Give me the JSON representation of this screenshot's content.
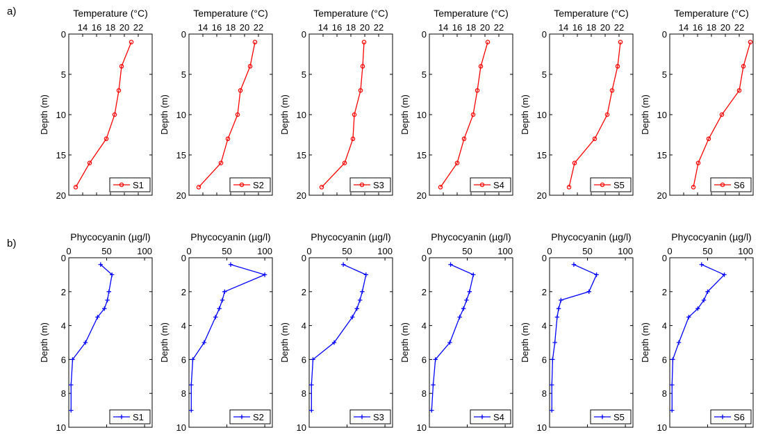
{
  "panel_labels": [
    "a)",
    "b)"
  ],
  "chart_data": [
    {
      "type": "line",
      "panel": "a",
      "title": "",
      "xlabel": "Temperature (°C)",
      "ylabel": "Depth (m)",
      "xlim": [
        12,
        24
      ],
      "ylim": [
        0,
        20
      ],
      "xticks": [
        "14",
        "16",
        "18",
        "20",
        "22"
      ],
      "yticks": [
        "0",
        "5",
        "10",
        "15",
        "20"
      ],
      "grid": false,
      "legend_position": "bottom-right",
      "series": [
        {
          "name": "S1",
          "color": "#ff0000",
          "marker": "circle",
          "x": [
            21.0,
            19.6,
            19.2,
            18.6,
            17.4,
            15.0,
            13.0
          ],
          "y": [
            1,
            4,
            7,
            10,
            13,
            16,
            19
          ]
        }
      ]
    },
    {
      "type": "line",
      "panel": "a",
      "title": "",
      "xlabel": "Temperature (°C)",
      "ylabel": "Depth (m)",
      "xlim": [
        12,
        24
      ],
      "ylim": [
        0,
        20
      ],
      "xticks": [
        "14",
        "16",
        "18",
        "20",
        "22"
      ],
      "yticks": [
        "0",
        "5",
        "10",
        "15",
        "20"
      ],
      "grid": false,
      "legend_position": "bottom-right",
      "series": [
        {
          "name": "S2",
          "color": "#ff0000",
          "marker": "circle",
          "x": [
            21.5,
            20.8,
            19.4,
            19.0,
            17.6,
            16.6,
            13.4
          ],
          "y": [
            1,
            4,
            7,
            10,
            13,
            16,
            19
          ]
        }
      ]
    },
    {
      "type": "line",
      "panel": "a",
      "title": "",
      "xlabel": "Temperature (°C)",
      "ylabel": "Depth (m)",
      "xlim": [
        12,
        24
      ],
      "ylim": [
        0,
        20
      ],
      "xticks": [
        "14",
        "16",
        "18",
        "20",
        "22"
      ],
      "yticks": [
        "0",
        "5",
        "10",
        "15",
        "20"
      ],
      "grid": false,
      "legend_position": "bottom-right",
      "series": [
        {
          "name": "S3",
          "color": "#ff0000",
          "marker": "circle",
          "x": [
            19.9,
            19.7,
            19.4,
            18.5,
            18.3,
            17.1,
            13.8
          ],
          "y": [
            1,
            4,
            7,
            10,
            13,
            16,
            19
          ]
        }
      ]
    },
    {
      "type": "line",
      "panel": "a",
      "title": "",
      "xlabel": "Temperature (°C)",
      "ylabel": "Depth (m)",
      "xlim": [
        12,
        24
      ],
      "ylim": [
        0,
        20
      ],
      "xticks": [
        "14",
        "16",
        "18",
        "20",
        "22"
      ],
      "yticks": [
        "0",
        "5",
        "10",
        "15",
        "20"
      ],
      "grid": false,
      "legend_position": "bottom-right",
      "series": [
        {
          "name": "S4",
          "color": "#ff0000",
          "marker": "circle",
          "x": [
            20.4,
            19.4,
            18.9,
            18.3,
            17.0,
            16.0,
            13.6
          ],
          "y": [
            1,
            4,
            7,
            10,
            13,
            16,
            19
          ]
        }
      ]
    },
    {
      "type": "line",
      "panel": "a",
      "title": "",
      "xlabel": "Temperature (°C)",
      "ylabel": "Depth (m)",
      "xlim": [
        12,
        24
      ],
      "ylim": [
        0,
        20
      ],
      "xticks": [
        "14",
        "16",
        "18",
        "20",
        "22"
      ],
      "yticks": [
        "0",
        "5",
        "10",
        "15",
        "20"
      ],
      "grid": false,
      "legend_position": "bottom-right",
      "series": [
        {
          "name": "S5",
          "color": "#ff0000",
          "marker": "circle",
          "x": [
            22.2,
            21.8,
            21.0,
            20.3,
            18.5,
            15.6,
            14.8
          ],
          "y": [
            1,
            4,
            7,
            10,
            13,
            16,
            19
          ]
        }
      ]
    },
    {
      "type": "line",
      "panel": "a",
      "title": "",
      "xlabel": "Temperature (°C)",
      "ylabel": "Depth (m)",
      "xlim": [
        12,
        24
      ],
      "ylim": [
        0,
        20
      ],
      "xticks": [
        "14",
        "16",
        "18",
        "20",
        "22"
      ],
      "yticks": [
        "0",
        "5",
        "10",
        "15",
        "20"
      ],
      "grid": false,
      "legend_position": "bottom-right",
      "series": [
        {
          "name": "S6",
          "color": "#ff0000",
          "marker": "circle",
          "x": [
            23.6,
            22.6,
            22.0,
            19.5,
            17.6,
            16.1,
            15.4
          ],
          "y": [
            1,
            4,
            7,
            10,
            13,
            16,
            19
          ]
        }
      ]
    },
    {
      "type": "line",
      "panel": "b",
      "title": "",
      "xlabel": "Phycocyanin (µg/l)",
      "ylabel": "Depth (m)",
      "xlim": [
        0,
        110
      ],
      "ylim": [
        0,
        10
      ],
      "xticks": [
        "0",
        "50",
        "100"
      ],
      "yticks": [
        "0",
        "2",
        "4",
        "6",
        "8",
        "10"
      ],
      "grid": false,
      "legend_position": "bottom-right",
      "series": [
        {
          "name": "S1",
          "color": "#0000ff",
          "marker": "plus",
          "x": [
            42,
            57,
            53,
            51,
            47,
            38,
            22,
            5,
            3,
            3
          ],
          "y": [
            0.4,
            1,
            2,
            2.5,
            3,
            3.5,
            5,
            6,
            7.5,
            9
          ]
        }
      ]
    },
    {
      "type": "line",
      "panel": "b",
      "title": "",
      "xlabel": "Phycocyanin (µg/l)",
      "ylabel": "Depth (m)",
      "xlim": [
        0,
        110
      ],
      "ylim": [
        0,
        10
      ],
      "xticks": [
        "0",
        "50",
        "100"
      ],
      "yticks": [
        "0",
        "2",
        "4",
        "6",
        "8",
        "10"
      ],
      "grid": false,
      "legend_position": "bottom-right",
      "series": [
        {
          "name": "S2",
          "color": "#0000ff",
          "marker": "plus",
          "x": [
            55,
            100,
            47,
            44,
            40,
            35,
            20,
            5,
            3,
            3
          ],
          "y": [
            0.4,
            1,
            2,
            2.5,
            3,
            3.5,
            5,
            6,
            7.5,
            9
          ]
        }
      ]
    },
    {
      "type": "line",
      "panel": "b",
      "title": "",
      "xlabel": "Phycocyanin (µg/l)",
      "ylabel": "Depth (m)",
      "xlim": [
        0,
        110
      ],
      "ylim": [
        0,
        10
      ],
      "xticks": [
        "0",
        "50",
        "100"
      ],
      "yticks": [
        "0",
        "2",
        "4",
        "6",
        "8",
        "10"
      ],
      "grid": false,
      "legend_position": "bottom-right",
      "series": [
        {
          "name": "S3",
          "color": "#0000ff",
          "marker": "plus",
          "x": [
            45,
            75,
            70,
            67,
            63,
            57,
            33,
            5,
            3,
            3
          ],
          "y": [
            0.4,
            1,
            2,
            2.5,
            3,
            3.5,
            5,
            6,
            7.5,
            9
          ]
        }
      ]
    },
    {
      "type": "line",
      "panel": "b",
      "title": "",
      "xlabel": "Phycocyanin (µg/l)",
      "ylabel": "Depth (m)",
      "xlim": [
        0,
        110
      ],
      "ylim": [
        0,
        10
      ],
      "xticks": [
        "0",
        "50",
        "100"
      ],
      "yticks": [
        "0",
        "2",
        "4",
        "6",
        "8",
        "10"
      ],
      "grid": false,
      "legend_position": "bottom-right",
      "series": [
        {
          "name": "S4",
          "color": "#0000ff",
          "marker": "plus",
          "x": [
            28,
            58,
            53,
            49,
            45,
            40,
            27,
            8,
            5,
            3
          ],
          "y": [
            0.4,
            1,
            2,
            2.5,
            3,
            3.5,
            5,
            6,
            7.5,
            9
          ]
        }
      ]
    },
    {
      "type": "line",
      "panel": "b",
      "title": "",
      "xlabel": "Phycocyanin (µg/l)",
      "ylabel": "Depth (m)",
      "xlim": [
        0,
        110
      ],
      "ylim": [
        0,
        10
      ],
      "xticks": [
        "0",
        "50",
        "100"
      ],
      "yticks": [
        "0",
        "2",
        "4",
        "6",
        "8",
        "10"
      ],
      "grid": false,
      "legend_position": "bottom-right",
      "series": [
        {
          "name": "S5",
          "color": "#0000ff",
          "marker": "plus",
          "x": [
            32,
            62,
            52,
            15,
            12,
            10,
            7,
            4,
            3,
            3
          ],
          "y": [
            0.4,
            1,
            2,
            2.5,
            3,
            3.5,
            5,
            6,
            7.5,
            9
          ]
        }
      ]
    },
    {
      "type": "line",
      "panel": "b",
      "title": "",
      "xlabel": "Phycocyanin (µg/l)",
      "ylabel": "Depth (m)",
      "xlim": [
        0,
        110
      ],
      "ylim": [
        0,
        10
      ],
      "xticks": [
        "0",
        "50",
        "100"
      ],
      "yticks": [
        "0",
        "2",
        "4",
        "6",
        "8",
        "10"
      ],
      "grid": false,
      "legend_position": "bottom-right",
      "series": [
        {
          "name": "S6",
          "color": "#0000ff",
          "marker": "plus",
          "x": [
            42,
            72,
            50,
            45,
            37,
            25,
            12,
            4,
            3,
            3
          ],
          "y": [
            0.4,
            1,
            2,
            2.5,
            3,
            3.5,
            5,
            6,
            7.5,
            9
          ]
        }
      ]
    }
  ]
}
